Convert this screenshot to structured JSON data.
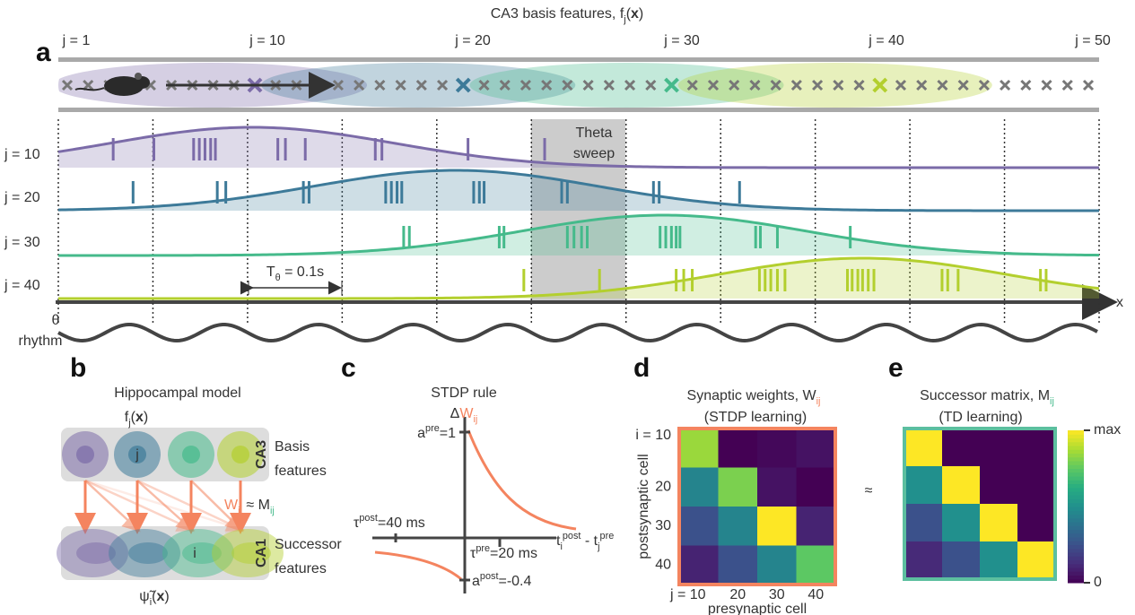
{
  "title": [
    "CA3 basis features, f",
    "j",
    "(",
    "x",
    ")"
  ],
  "panel_labels": [
    "a",
    "b",
    "c",
    "d",
    "e"
  ],
  "panel_a": {
    "feature_labels": [
      {
        "text": "j = 1",
        "color": "#444444"
      },
      {
        "text": "j = 10",
        "color": "#7b6ba8"
      },
      {
        "text": "j = 20",
        "color": "#3d7a99"
      },
      {
        "text": "j = 30",
        "color": "#45ba8b"
      },
      {
        "text": "j = 40",
        "color": "#b3cf2e"
      },
      {
        "text": "j = 50",
        "color": "#444444"
      }
    ],
    "n_features": 50,
    "xlim": [
      0,
      11
    ],
    "rows": [
      {
        "label": "j = 10",
        "index": 10,
        "color": "#7b6ba8",
        "center": 2.05,
        "width": 1.5,
        "spikes": [
          0.58,
          1.01,
          1.43,
          1.49,
          1.55,
          1.61,
          1.66,
          2.32,
          2.4,
          2.61,
          3.35,
          3.42,
          4.33,
          5.14
        ]
      },
      {
        "label": "j = 20",
        "index": 20,
        "color": "#3d7a99",
        "center": 4.2,
        "width": 1.5,
        "spikes": [
          0.79,
          1.68,
          1.77,
          2.59,
          2.65,
          3.46,
          3.52,
          3.58,
          3.63,
          4.39,
          4.45,
          4.5,
          5.32,
          5.38,
          6.29,
          6.35,
          7.2
        ]
      },
      {
        "label": "j = 30",
        "index": 30,
        "color": "#45ba8b",
        "center": 6.4,
        "width": 1.5,
        "spikes": [
          3.65,
          3.71,
          4.66,
          4.71,
          5.38,
          5.45,
          5.53,
          5.59,
          6.36,
          6.42,
          6.48,
          6.53,
          6.57,
          7.37,
          7.42,
          7.6,
          8.37
        ]
      },
      {
        "label": "j = 40",
        "index": 40,
        "color": "#b3cf2e",
        "center": 8.5,
        "width": 1.5,
        "spikes": [
          4.92,
          5.72,
          6.53,
          6.61,
          6.7,
          7.41,
          7.47,
          7.53,
          7.6,
          7.68,
          8.34,
          8.39,
          8.45,
          8.5,
          8.56,
          8.62,
          9.34,
          9.4,
          9.51,
          10.38,
          10.44
        ]
      }
    ],
    "theta_sweep": [
      "Theta",
      "sweep"
    ],
    "period_label": [
      "T",
      "θ",
      " = 0.1s"
    ],
    "x_label": "x",
    "rhythm_label": [
      "θ",
      "rhythm"
    ]
  },
  "panel_b": {
    "title": "Hippocampal model",
    "basis_label": [
      "f",
      "j",
      "(",
      "x",
      ")"
    ],
    "ca3": "CA3",
    "ca1": "CA1",
    "basis": [
      "Basis",
      "features"
    ],
    "successor": [
      "Successor",
      "features"
    ],
    "j": "j",
    "i": "i",
    "relation": [
      "W",
      "ij",
      " ≈ M",
      "ij"
    ],
    "output": [
      "ψ̃",
      "i",
      "(",
      "x",
      ")"
    ]
  },
  "panel_c": {
    "title": "STDP rule",
    "ylabel": [
      "Δ",
      "W",
      "ij"
    ],
    "a_pre": [
      "a",
      "pre",
      "=1"
    ],
    "tau_post": [
      "τ",
      "post",
      "=40 ms"
    ],
    "tau_pre": [
      "τ",
      "pre",
      "=20 ms"
    ],
    "a_post": [
      "a",
      "post",
      "=-0.4"
    ],
    "xlabel": [
      "t",
      "i",
      "post",
      " - t",
      "j",
      "pre"
    ]
  },
  "panel_d": {
    "title": [
      "Synaptic weights, W",
      "ij"
    ],
    "subtitle": "(STDP learning)",
    "row_labels": [
      "i = 10",
      "20",
      "30",
      "40"
    ],
    "col_labels": [
      "j = 10",
      "20",
      "30",
      "40"
    ],
    "label_colors": [
      "#7b6ba8",
      "#3d7a99",
      "#45ba8b",
      "#b3cf2e"
    ],
    "ylabel": "postsynaptic cell",
    "xlabel": "presynaptic cell",
    "border_color": "#f4845f",
    "matrix": [
      [
        0.85,
        0,
        0.02,
        0.05
      ],
      [
        0.45,
        0.8,
        0.05,
        0
      ],
      [
        0.25,
        0.45,
        1,
        0.1
      ],
      [
        0.1,
        0.25,
        0.45,
        0.75
      ]
    ]
  },
  "approx": "≈",
  "panel_e": {
    "title": [
      "Successor matrix, M",
      "ij"
    ],
    "subtitle": "(TD learning)",
    "border_color": "#5cbf9f",
    "matrix": [
      [
        1,
        0,
        0,
        0
      ],
      [
        0.5,
        1,
        0,
        0
      ],
      [
        0.25,
        0.5,
        1,
        0
      ],
      [
        0.12,
        0.25,
        0.5,
        1
      ]
    ],
    "clim": [
      0,
      1
    ],
    "cticks": [
      0,
      {
        "value": 1,
        "label": "max"
      }
    ]
  }
}
